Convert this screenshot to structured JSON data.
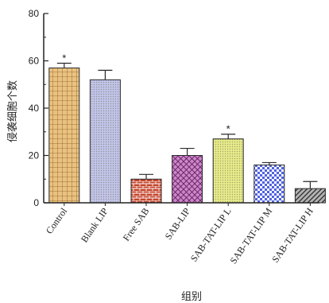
{
  "chart_data": {
    "type": "bar",
    "categories": [
      "Control",
      "Blank LIP",
      "Free SAB",
      "SAB-LIP",
      "SAB-TAT-LIP L",
      "SAB-TAT-LIP M",
      "SAB-TAT-LIP H"
    ],
    "values": [
      57,
      52,
      10,
      20,
      27,
      16,
      6
    ],
    "errors": [
      2,
      4,
      2,
      3,
      2,
      1,
      3
    ],
    "annotations": [
      "*",
      "",
      "",
      "",
      "*",
      "",
      ""
    ],
    "xlabel": "组别",
    "ylabel": "侵袭细胞个数",
    "ylim": [
      0,
      80
    ],
    "yticks": [
      "0",
      "20",
      "40",
      "60",
      "80"
    ],
    "colors": [
      "#e9c282",
      "#c2c4ea",
      "#c4452c",
      "#d184c9",
      "#e7eb8a",
      "#4f62e1",
      "#b3b3b3"
    ],
    "patterns": [
      "grid",
      "dots",
      "brick",
      "crosshatch",
      "dots",
      "checker",
      "diagonal"
    ],
    "grid": false
  }
}
